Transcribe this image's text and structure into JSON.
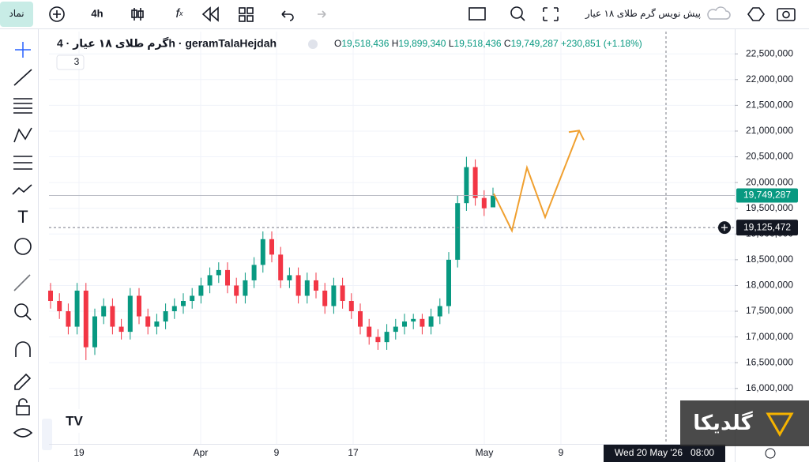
{
  "toolbar": {
    "symbol_button": "نماد",
    "interval": "4h",
    "draft_title": "پیش نویس گرم طلای ۱۸ عیار"
  },
  "legend": {
    "name": "گرم طلای ۱۸ عیار · 4h · geramTalaHejdah",
    "o_key": "O",
    "o": "19,518,436",
    "h_key": "H",
    "h": "19,899,340",
    "l_key": "L",
    "l": "19,518,436",
    "c_key": "C",
    "c": "19,749,287",
    "change": "+230,851 (+1.18%)",
    "indicators": "3"
  },
  "watermark": "گلدیکا",
  "chart_data": {
    "type": "candlestick",
    "up_color": "#089981",
    "down_color": "#f23645",
    "candles": [
      [
        17900000,
        18050000,
        17550000,
        17700000
      ],
      [
        17700000,
        17850000,
        17350000,
        17500000
      ],
      [
        17500000,
        17650000,
        17050000,
        17200000
      ],
      [
        17200000,
        18050000,
        17050000,
        17900000
      ],
      [
        17900000,
        18050000,
        16550000,
        16800000
      ],
      [
        16800000,
        17550000,
        16650000,
        17400000
      ],
      [
        17400000,
        17750000,
        17250000,
        17600000
      ],
      [
        17600000,
        17750000,
        17050000,
        17200000
      ],
      [
        17200000,
        17350000,
        16950000,
        17100000
      ],
      [
        17100000,
        17950000,
        16950000,
        17800000
      ],
      [
        17800000,
        17950000,
        17250000,
        17400000
      ],
      [
        17400000,
        17550000,
        17050000,
        17200000
      ],
      [
        17200000,
        17450000,
        17050000,
        17300000
      ],
      [
        17300000,
        17650000,
        17150000,
        17500000
      ],
      [
        17500000,
        17750000,
        17350000,
        17600000
      ],
      [
        17600000,
        17850000,
        17450000,
        17700000
      ],
      [
        17700000,
        17950000,
        17550000,
        17800000
      ],
      [
        17800000,
        18150000,
        17650000,
        18000000
      ],
      [
        18000000,
        18350000,
        17850000,
        18200000
      ],
      [
        18200000,
        18450000,
        18050000,
        18300000
      ],
      [
        18300000,
        18450000,
        17850000,
        18000000
      ],
      [
        18000000,
        18150000,
        17650000,
        17800000
      ],
      [
        17800000,
        18250000,
        17650000,
        18100000
      ],
      [
        18100000,
        18550000,
        17950000,
        18400000
      ],
      [
        18400000,
        19050000,
        18250000,
        18900000
      ],
      [
        18900000,
        19050000,
        18450000,
        18600000
      ],
      [
        18600000,
        18750000,
        17950000,
        18100000
      ],
      [
        18100000,
        18350000,
        17950000,
        18200000
      ],
      [
        18200000,
        18350000,
        17650000,
        17800000
      ],
      [
        17800000,
        18250000,
        17650000,
        18100000
      ],
      [
        18100000,
        18250000,
        17750000,
        17900000
      ],
      [
        17900000,
        18050000,
        17450000,
        17600000
      ],
      [
        17600000,
        18150000,
        17450000,
        18000000
      ],
      [
        18000000,
        18150000,
        17550000,
        17700000
      ],
      [
        17700000,
        17850000,
        17350000,
        17500000
      ],
      [
        17500000,
        17650000,
        17050000,
        17200000
      ],
      [
        17200000,
        17350000,
        16850000,
        17000000
      ],
      [
        17000000,
        17150000,
        16750000,
        16900000
      ],
      [
        16900000,
        17250000,
        16750000,
        17100000
      ],
      [
        17100000,
        17350000,
        16950000,
        17200000
      ],
      [
        17200000,
        17450000,
        17050000,
        17300000
      ],
      [
        17300000,
        17450000,
        17150000,
        17350000
      ],
      [
        17350000,
        17450000,
        17050000,
        17200000
      ],
      [
        17200000,
        17550000,
        17050000,
        17400000
      ],
      [
        17400000,
        17750000,
        17250000,
        17600000
      ],
      [
        17600000,
        18650000,
        17450000,
        18500000
      ],
      [
        18500000,
        19750000,
        18350000,
        19600000
      ],
      [
        19600000,
        20500000,
        19450000,
        20300000
      ],
      [
        20300000,
        20450000,
        19550000,
        19700000
      ],
      [
        19700000,
        19850000,
        19350000,
        19500000
      ],
      [
        19518436,
        19899340,
        19518436,
        19749287
      ]
    ],
    "projection": {
      "color": "#f0a030",
      "values": [
        19785000,
        19064000,
        20290000,
        19325000,
        21010000
      ]
    },
    "x_labels": [
      "19",
      "Apr",
      "9",
      "17",
      "May",
      "9"
    ],
    "ylim": [
      15030000,
      22810000
    ],
    "yticks": [
      {
        "value": 16000000,
        "label": "16,000,000"
      },
      {
        "value": 16500000,
        "label": "16,500,000"
      },
      {
        "value": 17000000,
        "label": "17,000,000"
      },
      {
        "value": 17500000,
        "label": "17,500,000"
      },
      {
        "value": 18000000,
        "label": "18,000,000"
      },
      {
        "value": 18500000,
        "label": "18,500,000"
      },
      {
        "value": 19000000,
        "label": "19,000,000"
      },
      {
        "value": 19500000,
        "label": "19,500,000"
      },
      {
        "value": 20000000,
        "label": "20,000,000"
      },
      {
        "value": 20500000,
        "label": "20,500,000"
      },
      {
        "value": 21000000,
        "label": "21,000,000"
      },
      {
        "value": 21500000,
        "label": "21,500,000"
      },
      {
        "value": 22000000,
        "label": "22,000,000"
      },
      {
        "value": 22500000,
        "label": "22,500,000"
      }
    ],
    "last_price_label": "19,749,287",
    "crosshair": {
      "value": 19125472,
      "label": "19,125,472"
    },
    "crosshair_time": "Wed 20 May '26   08:00",
    "grid": true
  }
}
